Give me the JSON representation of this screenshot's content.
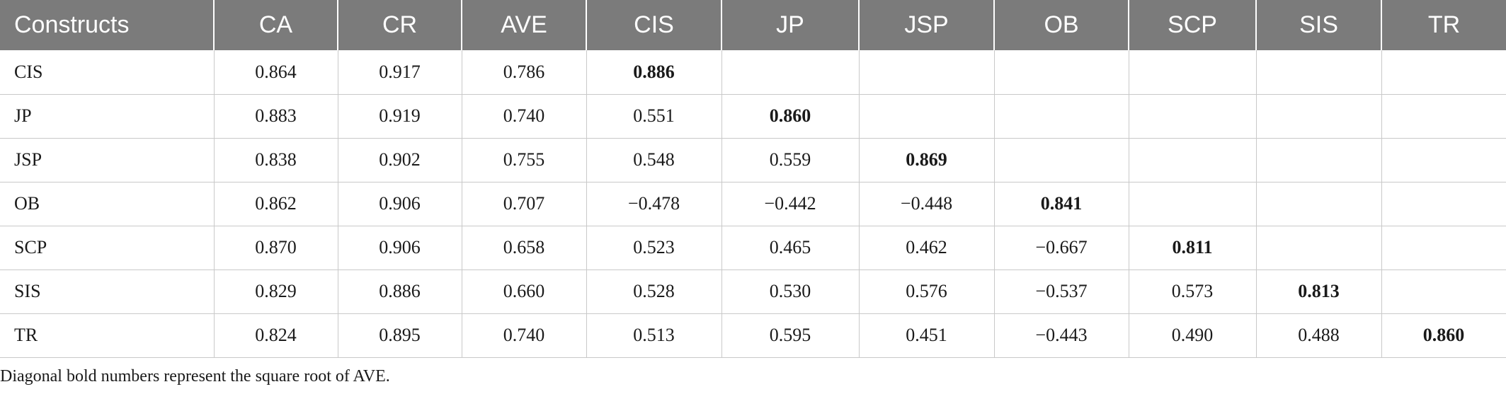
{
  "table": {
    "headers": [
      "Constructs",
      "CA",
      "CR",
      "AVE",
      "CIS",
      "JP",
      "JSP",
      "OB",
      "SCP",
      "SIS",
      "TR"
    ],
    "rows": [
      [
        "CIS",
        "0.864",
        "0.917",
        "0.786",
        "0.886",
        "",
        "",
        "",
        "",
        "",
        ""
      ],
      [
        "JP",
        "0.883",
        "0.919",
        "0.740",
        "0.551",
        "0.860",
        "",
        "",
        "",
        "",
        ""
      ],
      [
        "JSP",
        "0.838",
        "0.902",
        "0.755",
        "0.548",
        "0.559",
        "0.869",
        "",
        "",
        "",
        ""
      ],
      [
        "OB",
        "0.862",
        "0.906",
        "0.707",
        "−0.478",
        "−0.442",
        "−0.448",
        "0.841",
        "",
        "",
        ""
      ],
      [
        "SCP",
        "0.870",
        "0.906",
        "0.658",
        "0.523",
        "0.465",
        "0.462",
        "−0.667",
        "0.811",
        "",
        ""
      ],
      [
        "SIS",
        "0.829",
        "0.886",
        "0.660",
        "0.528",
        "0.530",
        "0.576",
        "−0.537",
        "0.573",
        "0.813",
        ""
      ],
      [
        "TR",
        "0.824",
        "0.895",
        "0.740",
        "0.513",
        "0.595",
        "0.451",
        "−0.443",
        "0.490",
        "0.488",
        "0.860"
      ]
    ]
  },
  "footnote": "Diagonal bold numbers represent the square root of AVE."
}
